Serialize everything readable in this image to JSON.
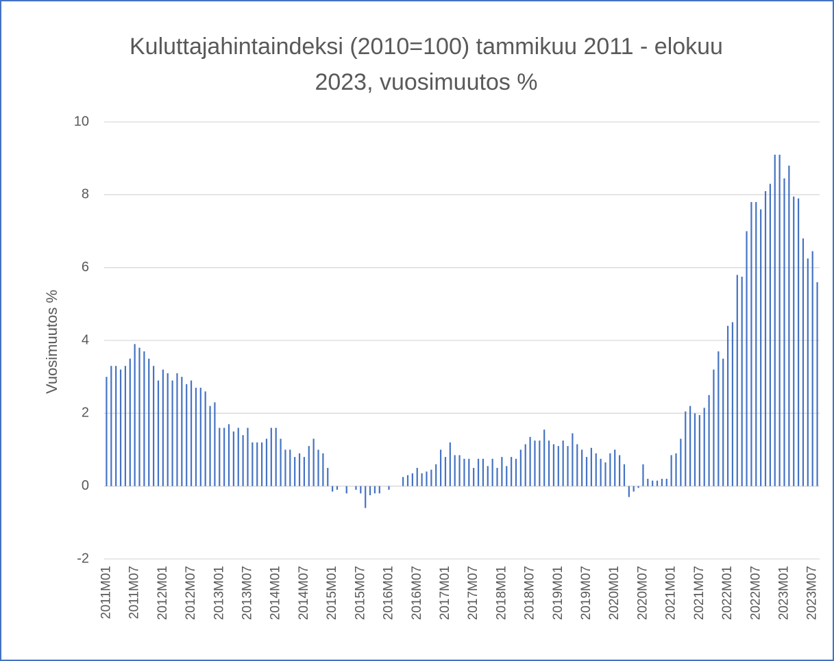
{
  "chart_data": {
    "type": "bar",
    "title": "Kuluttajahintaindeksi (2010=100) tammikuu 2011 - elokuu 2023, vuosimuutos %",
    "y_label": "Vuosimuutos %",
    "categories": [
      "2011M01",
      null,
      null,
      null,
      null,
      null,
      "2011M07",
      null,
      null,
      null,
      null,
      null,
      "2012M01",
      null,
      null,
      null,
      null,
      null,
      "2012M07",
      null,
      null,
      null,
      null,
      null,
      "2013M01",
      null,
      null,
      null,
      null,
      null,
      "2013M07",
      null,
      null,
      null,
      null,
      null,
      "2014M01",
      null,
      null,
      null,
      null,
      null,
      "2014M07",
      null,
      null,
      null,
      null,
      null,
      "2015M01",
      null,
      null,
      null,
      null,
      null,
      "2015M07",
      null,
      null,
      null,
      null,
      null,
      "2016M01",
      null,
      null,
      null,
      null,
      null,
      "2016M07",
      null,
      null,
      null,
      null,
      null,
      "2017M01",
      null,
      null,
      null,
      null,
      null,
      "2017M07",
      null,
      null,
      null,
      null,
      null,
      "2018M01",
      null,
      null,
      null,
      null,
      null,
      "2018M07",
      null,
      null,
      null,
      null,
      null,
      "2019M01",
      null,
      null,
      null,
      null,
      null,
      "2019M07",
      null,
      null,
      null,
      null,
      null,
      "2020M01",
      null,
      null,
      null,
      null,
      null,
      "2020M07",
      null,
      null,
      null,
      null,
      null,
      "2021M01",
      null,
      null,
      null,
      null,
      null,
      "2021M07",
      null,
      null,
      null,
      null,
      null,
      "2022M01",
      null,
      null,
      null,
      null,
      null,
      "2022M07",
      null,
      null,
      null,
      null,
      null,
      "2023M01",
      null,
      null,
      null,
      null,
      null,
      "2023M07",
      null
    ],
    "values": [
      3.0,
      3.3,
      3.3,
      3.2,
      3.3,
      3.5,
      3.9,
      3.8,
      3.7,
      3.5,
      3.3,
      2.9,
      3.2,
      3.1,
      2.9,
      3.1,
      3.0,
      2.8,
      2.9,
      2.7,
      2.7,
      2.6,
      2.2,
      2.3,
      1.6,
      1.6,
      1.7,
      1.5,
      1.6,
      1.4,
      1.6,
      1.2,
      1.2,
      1.2,
      1.3,
      1.6,
      1.6,
      1.3,
      1.0,
      1.0,
      0.8,
      0.9,
      0.8,
      1.1,
      1.3,
      1.0,
      0.9,
      0.5,
      -0.15,
      -0.1,
      0.0,
      -0.2,
      0.0,
      -0.1,
      -0.2,
      -0.6,
      -0.25,
      -0.2,
      -0.2,
      0.0,
      -0.1,
      0.0,
      0.0,
      0.25,
      0.3,
      0.35,
      0.5,
      0.35,
      0.4,
      0.45,
      0.6,
      1.0,
      0.8,
      1.2,
      0.85,
      0.85,
      0.75,
      0.75,
      0.5,
      0.75,
      0.75,
      0.55,
      0.75,
      0.5,
      0.8,
      0.55,
      0.8,
      0.75,
      1.0,
      1.15,
      1.35,
      1.25,
      1.25,
      1.55,
      1.25,
      1.15,
      1.1,
      1.25,
      1.1,
      1.45,
      1.15,
      1.0,
      0.8,
      1.05,
      0.9,
      0.75,
      0.65,
      0.9,
      1.0,
      0.85,
      0.6,
      -0.3,
      -0.15,
      -0.05,
      0.6,
      0.2,
      0.15,
      0.15,
      0.2,
      0.2,
      0.85,
      0.9,
      1.3,
      2.05,
      2.2,
      2.0,
      1.95,
      2.15,
      2.5,
      3.2,
      3.7,
      3.5,
      4.4,
      4.5,
      5.8,
      5.75,
      7.0,
      7.8,
      7.8,
      7.6,
      8.1,
      8.3,
      9.1,
      9.1,
      8.45,
      8.8,
      7.95,
      7.9,
      6.8,
      6.25,
      6.45,
      5.6
    ],
    "color": "#4472c4",
    "ylim": [
      -2,
      10
    ],
    "yticks": [
      -2,
      0,
      2,
      4,
      6,
      8,
      10
    ],
    "grid": true
  }
}
